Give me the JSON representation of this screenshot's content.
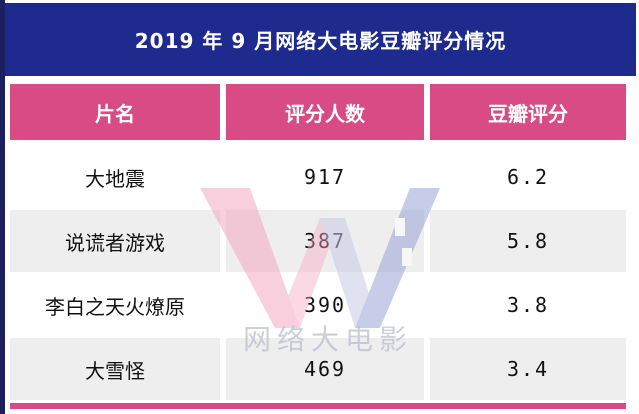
{
  "title": "2019 年 9 月网络大电影豆瓣评分情况",
  "headers": [
    "片名",
    "评分人数",
    "豆瓣评分"
  ],
  "rows": [
    {
      "name": "大地震",
      "raters": "917",
      "score": "6.2"
    },
    {
      "name": "说谎者游戏",
      "raters": "387",
      "score": "5.8"
    },
    {
      "name": "李白之天火燎原",
      "raters": "390",
      "score": "3.8"
    },
    {
      "name": "大雪怪",
      "raters": "469",
      "score": "3.4"
    }
  ],
  "watermark": {
    "text": "网络大电影"
  },
  "colors": {
    "title_bg": "#1f2a8f",
    "header_bg": "#d94b84",
    "row_shade": "#eeeeef"
  }
}
